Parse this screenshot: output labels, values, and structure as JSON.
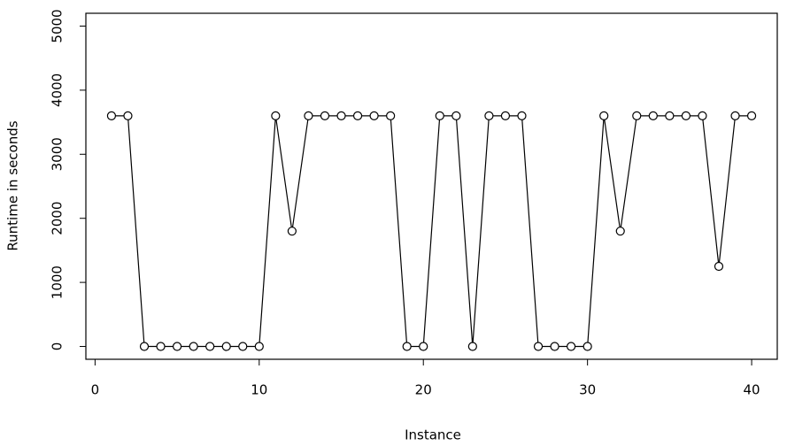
{
  "chart_data": {
    "type": "line",
    "x_label": "Instance",
    "y_label": "Runtime in seconds",
    "x": [
      1,
      2,
      3,
      4,
      5,
      6,
      7,
      8,
      9,
      10,
      11,
      12,
      13,
      14,
      15,
      16,
      17,
      18,
      19,
      20,
      21,
      22,
      23,
      24,
      25,
      26,
      27,
      28,
      29,
      30,
      31,
      32,
      33,
      34,
      35,
      36,
      37,
      38,
      39,
      40
    ],
    "series": [
      {
        "color": "#000000",
        "values": [
          3600,
          3600,
          0,
          0,
          0,
          0,
          0,
          0,
          0,
          0,
          3600,
          1800,
          3600,
          3600,
          3600,
          3600,
          3600,
          3600,
          0,
          0,
          3600,
          3600,
          0,
          3600,
          3600,
          3600,
          0,
          0,
          0,
          0,
          3600,
          1800,
          3600,
          3600,
          3600,
          3600,
          3600,
          1250,
          3600,
          3600
        ]
      }
    ],
    "xlim": [
      -0.56,
      41.56
    ],
    "ylim": [
      -200,
      5200
    ],
    "xticks": [
      0,
      10,
      20,
      30,
      40
    ],
    "yticks": [
      0,
      1000,
      2000,
      3000,
      4000,
      5000
    ]
  }
}
